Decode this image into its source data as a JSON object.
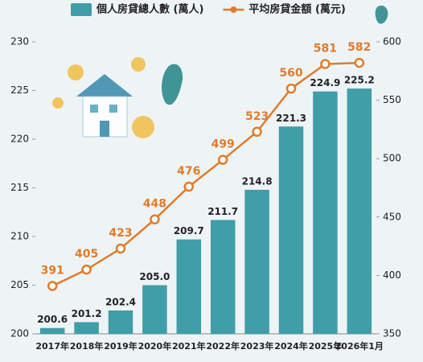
{
  "chart_data": {
    "type": "bar",
    "categories": [
      "2017年",
      "2018年",
      "2019年",
      "2020年",
      "2021年",
      "2022年",
      "2023年",
      "2024年",
      "2025年",
      "2026年1月"
    ],
    "series": [
      {
        "name": "個人房貸總人數 (萬人)",
        "type": "bar",
        "color": "#3f9ea8",
        "values": [
          200.6,
          201.2,
          202.4,
          205.0,
          209.7,
          211.7,
          214.8,
          221.3,
          224.9,
          225.2
        ],
        "value_labels": [
          "200.6",
          "201.2",
          "202.4",
          "205.0",
          "209.7",
          "211.7",
          "214.8",
          "221.3",
          "224.9",
          "225.2"
        ]
      },
      {
        "name": "平均房貸金額 (萬元)",
        "type": "line",
        "axis": "y2",
        "color": "#e07b2a",
        "values": [
          391,
          405,
          423,
          448,
          476,
          499,
          523,
          560,
          581,
          582
        ]
      }
    ],
    "ylim": [
      200,
      230
    ],
    "yticks": [
      200,
      205,
      210,
      215,
      220,
      225,
      230
    ],
    "y2lim": [
      350,
      600
    ],
    "y2ticks": [
      350,
      400,
      450,
      500,
      550,
      600
    ],
    "legend": "top"
  }
}
